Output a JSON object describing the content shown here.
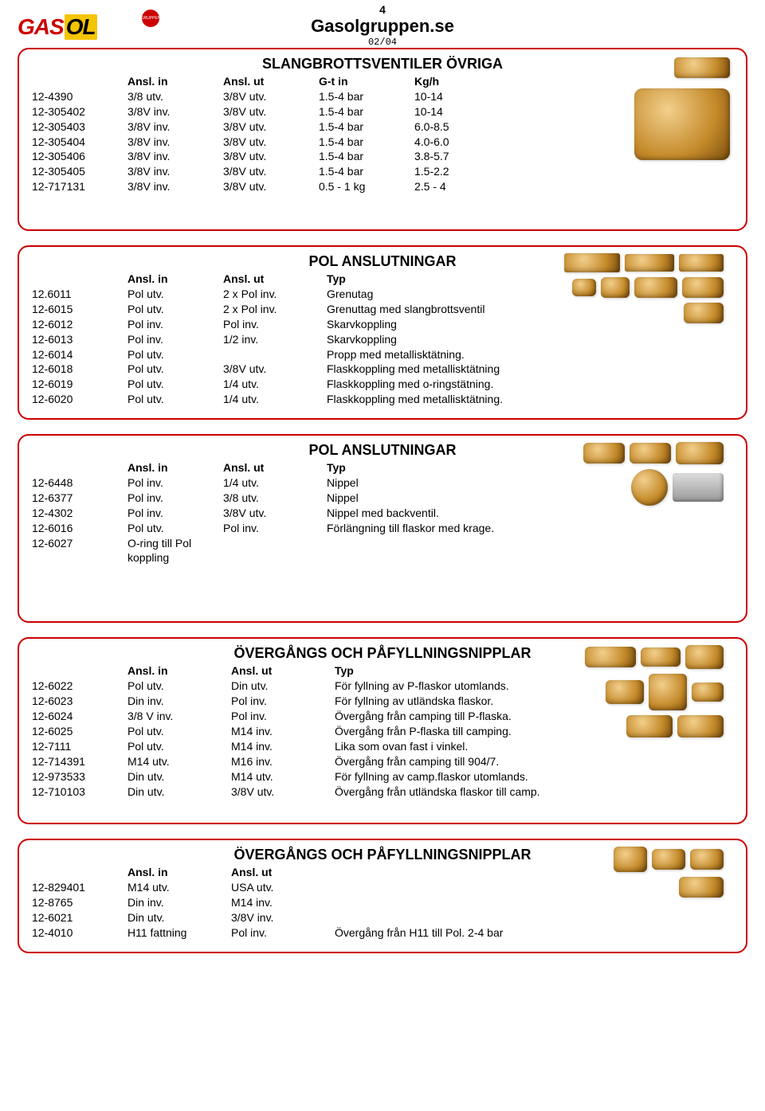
{
  "header": {
    "page_number": "4",
    "site": "Gasolgruppen.se",
    "date": "02/04",
    "logo_left": "GAS",
    "logo_right": "OL",
    "logo_badge": "GRUPPEN"
  },
  "colors": {
    "border": "#cc0000",
    "logo_red": "#cc0000",
    "logo_yellow": "#f5c400",
    "brass_light": "#f2cf8c",
    "brass_mid": "#c48a2a",
    "brass_dark": "#7a4d0d",
    "bg": "#ffffff"
  },
  "sections": [
    {
      "title": "SLANGBROTTSVENTILER ÖVRIGA",
      "headers": [
        "",
        "Ansl. in",
        "Ansl. ut",
        "G-t in",
        "Kg/h"
      ],
      "rows": [
        [
          "12-4390",
          "3/8 utv.",
          "3/8V utv.",
          "1.5-4 bar",
          "10-14"
        ],
        [
          "12-305402",
          "3/8V inv.",
          "3/8V utv.",
          "1.5-4 bar",
          "10-14"
        ],
        [
          "12-305403",
          "3/8V inv.",
          "3/8V utv.",
          "1.5-4 bar",
          "6.0-8.5"
        ],
        [
          "12-305404",
          "3/8V inv.",
          "3/8V utv.",
          "1.5-4 bar",
          "4.0-6.0"
        ],
        [
          "12-305406",
          "3/8V inv.",
          "3/8V utv.",
          "1.5-4 bar",
          "3.8-5.7"
        ],
        [
          "12-305405",
          "3/8V inv.",
          "3/8V utv.",
          "1.5-4 bar",
          "1.5-2.2"
        ],
        [
          "12-717131",
          "3/8V inv.",
          "3/8V utv.",
          "0.5 - 1 kg",
          "2.5 - 4"
        ]
      ]
    },
    {
      "title": "POL ANSLUTNINGAR",
      "headers": [
        "",
        "Ansl. in",
        "Ansl. ut",
        "Typ"
      ],
      "rows": [
        [
          "12.6011",
          "Pol utv.",
          "2 x Pol inv.",
          "Grenutag"
        ],
        [
          "12-6015",
          "Pol utv.",
          "2 x Pol inv.",
          "Grenuttag med slangbrottsventil"
        ],
        [
          "12-6012",
          "Pol inv.",
          "Pol inv.",
          "Skarvkoppling"
        ],
        [
          "12-6013",
          "Pol inv.",
          "1/2 inv.",
          "Skarvkoppling"
        ],
        [
          "12-6014",
          "Pol utv.",
          "",
          "Propp med metallisktätning."
        ],
        [
          "12-6018",
          "Pol utv.",
          "3/8V utv.",
          "Flaskkoppling med metallisktätning"
        ],
        [
          "12-6019",
          "Pol utv.",
          "1/4 utv.",
          "Flaskkoppling med o-ringstätning."
        ],
        [
          "12-6020",
          "Pol utv.",
          "1/4 utv.",
          "Flaskkoppling med metallisktätning."
        ]
      ]
    },
    {
      "title": "POL ANSLUTNINGAR",
      "headers": [
        "",
        "Ansl. in",
        "Ansl. ut",
        "Typ"
      ],
      "rows": [
        [
          "12-6448",
          "Pol inv.",
          "1/4 utv.",
          "Nippel"
        ],
        [
          "12-6377",
          "Pol inv.",
          "3/8 utv.",
          "Nippel"
        ],
        [
          "12-4302",
          "Pol inv.",
          "3/8V utv.",
          "Nippel med backventil."
        ],
        [
          "12-6016",
          "Pol utv.",
          "Pol inv.",
          "Förlängning till flaskor med krage."
        ],
        [
          "12-6027",
          "O-ring till Pol koppling",
          "",
          ""
        ]
      ]
    },
    {
      "title": "ÖVERGÅNGS OCH PÅFYLLNINGSNIPPLAR",
      "headers": [
        "",
        "Ansl. in",
        "Ansl. ut",
        "Typ"
      ],
      "rows": [
        [
          "12-6022",
          "Pol utv.",
          "Din utv.",
          "För fyllning av P-flaskor utomlands."
        ],
        [
          "12-6023",
          "Din inv.",
          "Pol inv.",
          "För fyllning av utländska flaskor."
        ],
        [
          "12-6024",
          "3/8 V inv.",
          "Pol inv.",
          "Övergång från camping till P-flaska."
        ],
        [
          "12-6025",
          "Pol utv.",
          "M14 inv.",
          "Övergång från P-flaska till camping."
        ],
        [
          "12-7111",
          "Pol utv.",
          "M14 inv.",
          "Lika som ovan fast i vinkel."
        ],
        [
          "12-714391",
          "M14 utv.",
          "M16 inv.",
          "Övergång från camping till 904/7."
        ],
        [
          "12-973533",
          "Din utv.",
          "M14 utv.",
          "För fyllning av camp.flaskor utomlands."
        ],
        [
          "12-710103",
          "Din utv.",
          "3/8V utv.",
          "Övergång från utländska flaskor till camp."
        ]
      ]
    },
    {
      "title": "ÖVERGÅNGS OCH PÅFYLLNINGSNIPPLAR",
      "headers": [
        "",
        "Ansl. in",
        "Ansl. ut",
        ""
      ],
      "rows": [
        [
          "12-829401",
          "M14 utv.",
          "USA utv.",
          ""
        ],
        [
          "12-8765",
          "Din inv.",
          "M14 inv.",
          ""
        ],
        [
          "12-6021",
          "Din utv.",
          "3/8V inv.",
          ""
        ],
        [
          "12-4010",
          "H11 fattning",
          "Pol inv.",
          "Övergång från H11 till Pol. 2-4 bar"
        ]
      ]
    }
  ]
}
